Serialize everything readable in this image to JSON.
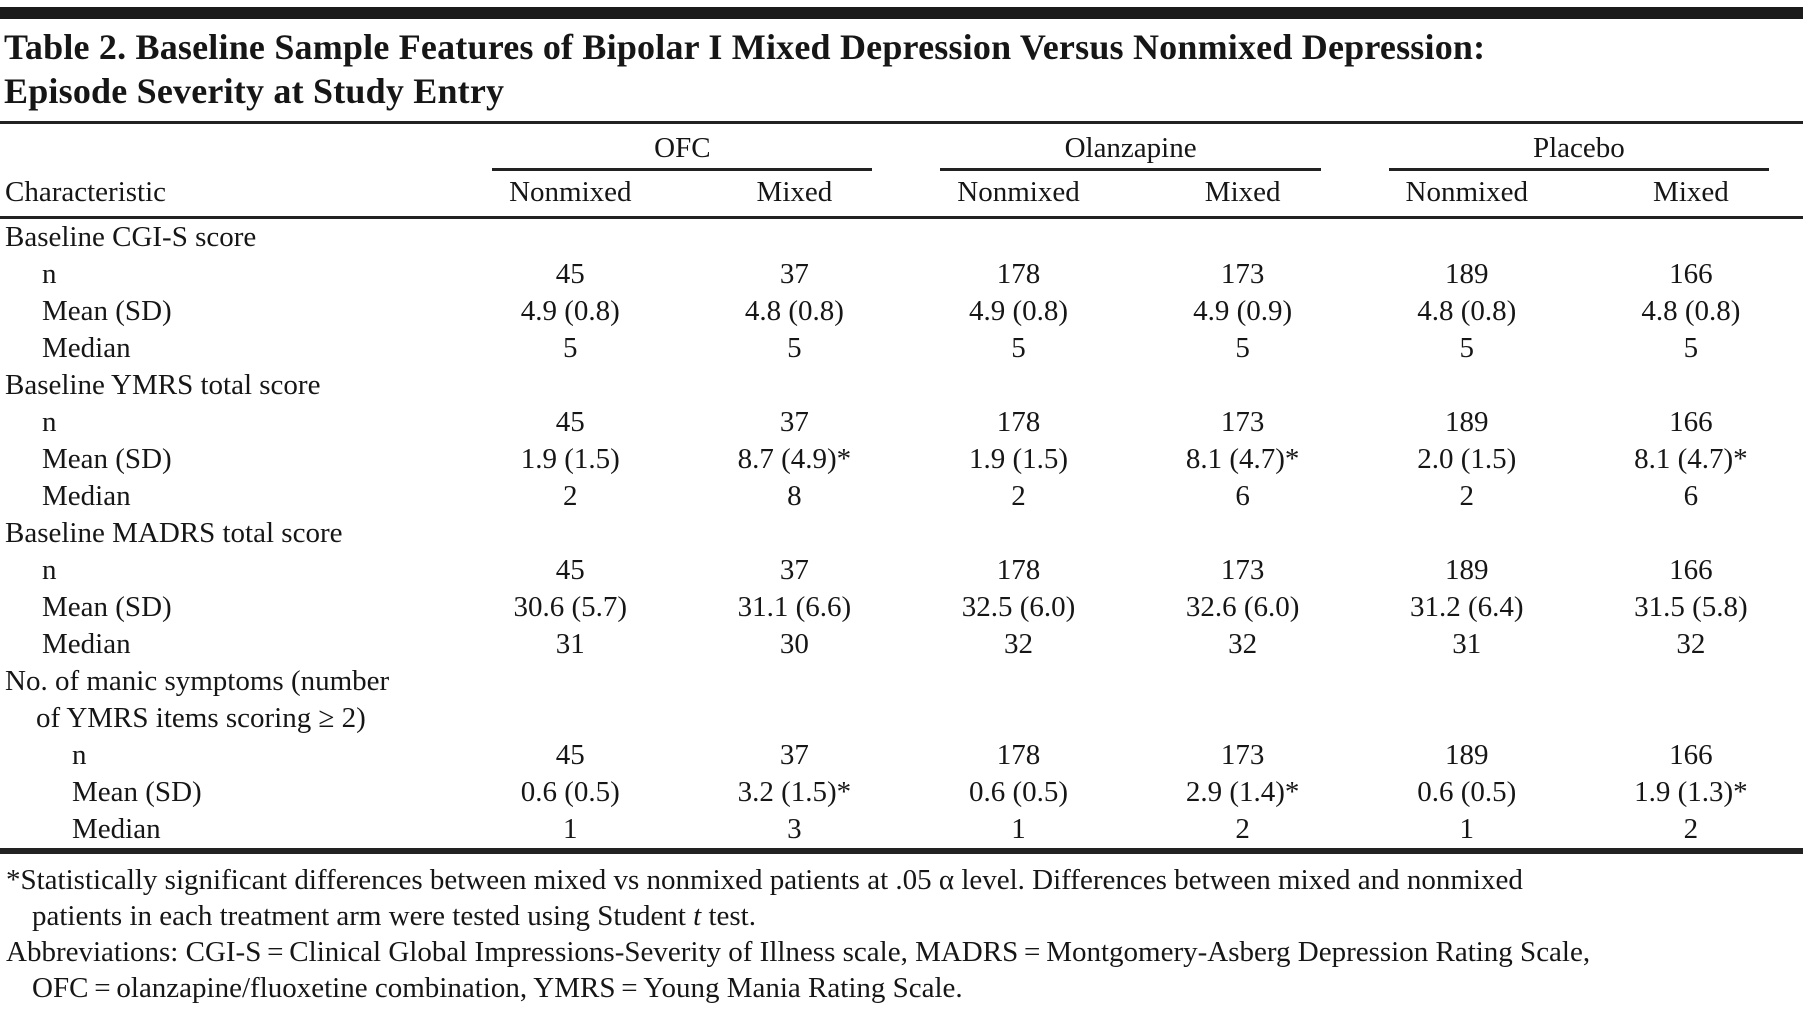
{
  "title": {
    "line1": "Table 2. Baseline Sample Features of Bipolar I Mixed Depression Versus Nonmixed Depression:",
    "line2": "Episode Severity at Study Entry"
  },
  "header": {
    "characteristic": "Characteristic",
    "groups": [
      {
        "label": "OFC",
        "sub": [
          "Nonmixed",
          "Mixed"
        ]
      },
      {
        "label": "Olanzapine",
        "sub": [
          "Nonmixed",
          "Mixed"
        ]
      },
      {
        "label": "Placebo",
        "sub": [
          "Nonmixed",
          "Mixed"
        ]
      }
    ]
  },
  "rows": [
    {
      "type": "section",
      "label": "Baseline CGI-S score"
    },
    {
      "type": "data",
      "label": "n",
      "values": [
        "45",
        "37",
        "178",
        "173",
        "189",
        "166"
      ]
    },
    {
      "type": "data",
      "label": "Mean (SD)",
      "values": [
        "4.9 (0.8)",
        "4.8 (0.8)",
        "4.9 (0.8)",
        "4.9 (0.9)",
        "4.8 (0.8)",
        "4.8 (0.8)"
      ]
    },
    {
      "type": "data",
      "label": "Median",
      "values": [
        "5",
        "5",
        "5",
        "5",
        "5",
        "5"
      ]
    },
    {
      "type": "section",
      "label": "Baseline YMRS total score"
    },
    {
      "type": "data",
      "label": "n",
      "values": [
        "45",
        "37",
        "178",
        "173",
        "189",
        "166"
      ]
    },
    {
      "type": "data",
      "label": "Mean (SD)",
      "values": [
        "1.9 (1.5)",
        "8.7 (4.9)*",
        "1.9 (1.5)",
        "8.1 (4.7)*",
        "2.0 (1.5)",
        "8.1 (4.7)*"
      ]
    },
    {
      "type": "data",
      "label": "Median",
      "values": [
        "2",
        "8",
        "2",
        "6",
        "2",
        "6"
      ]
    },
    {
      "type": "section",
      "label": "Baseline MADRS total score"
    },
    {
      "type": "data",
      "label": "n",
      "values": [
        "45",
        "37",
        "178",
        "173",
        "189",
        "166"
      ]
    },
    {
      "type": "data",
      "label": "Mean (SD)",
      "values": [
        "30.6 (5.7)",
        "31.1 (6.6)",
        "32.5 (6.0)",
        "32.6 (6.0)",
        "31.2 (6.4)",
        "31.5 (5.8)"
      ]
    },
    {
      "type": "data",
      "label": "Median",
      "values": [
        "31",
        "30",
        "32",
        "32",
        "31",
        "32"
      ]
    },
    {
      "type": "section",
      "label": "No. of manic symptoms (number",
      "label2": "of YMRS items scoring ≥ 2)"
    },
    {
      "type": "data",
      "label": "n",
      "values": [
        "45",
        "37",
        "178",
        "173",
        "189",
        "166"
      ]
    },
    {
      "type": "data",
      "label": "Mean (SD)",
      "values": [
        "0.6 (0.5)",
        "3.2 (1.5)*",
        "0.6 (0.5)",
        "2.9 (1.4)*",
        "0.6 (0.5)",
        "1.9 (1.3)*"
      ]
    },
    {
      "type": "data",
      "label": "Median",
      "values": [
        "1",
        "3",
        "1",
        "2",
        "1",
        "2"
      ]
    }
  ],
  "footnotes": {
    "fn1_line1": "*Statistically significant differences between mixed vs nonmixed patients at .05 α level. Differences between mixed and nonmixed",
    "fn1_line2_pre": "patients in each treatment arm were tested using Student ",
    "fn1_line2_italic": "t",
    "fn1_line2_post": " test.",
    "fn2_line1": "Abbreviations: CGI-S = Clinical Global Impressions-Severity of Illness scale, MADRS = Montgomery-Asberg Depression Rating Scale,",
    "fn2_line2": "OFC = olanzapine/fluoxetine combination, YMRS = Young Mania Rating Scale."
  }
}
